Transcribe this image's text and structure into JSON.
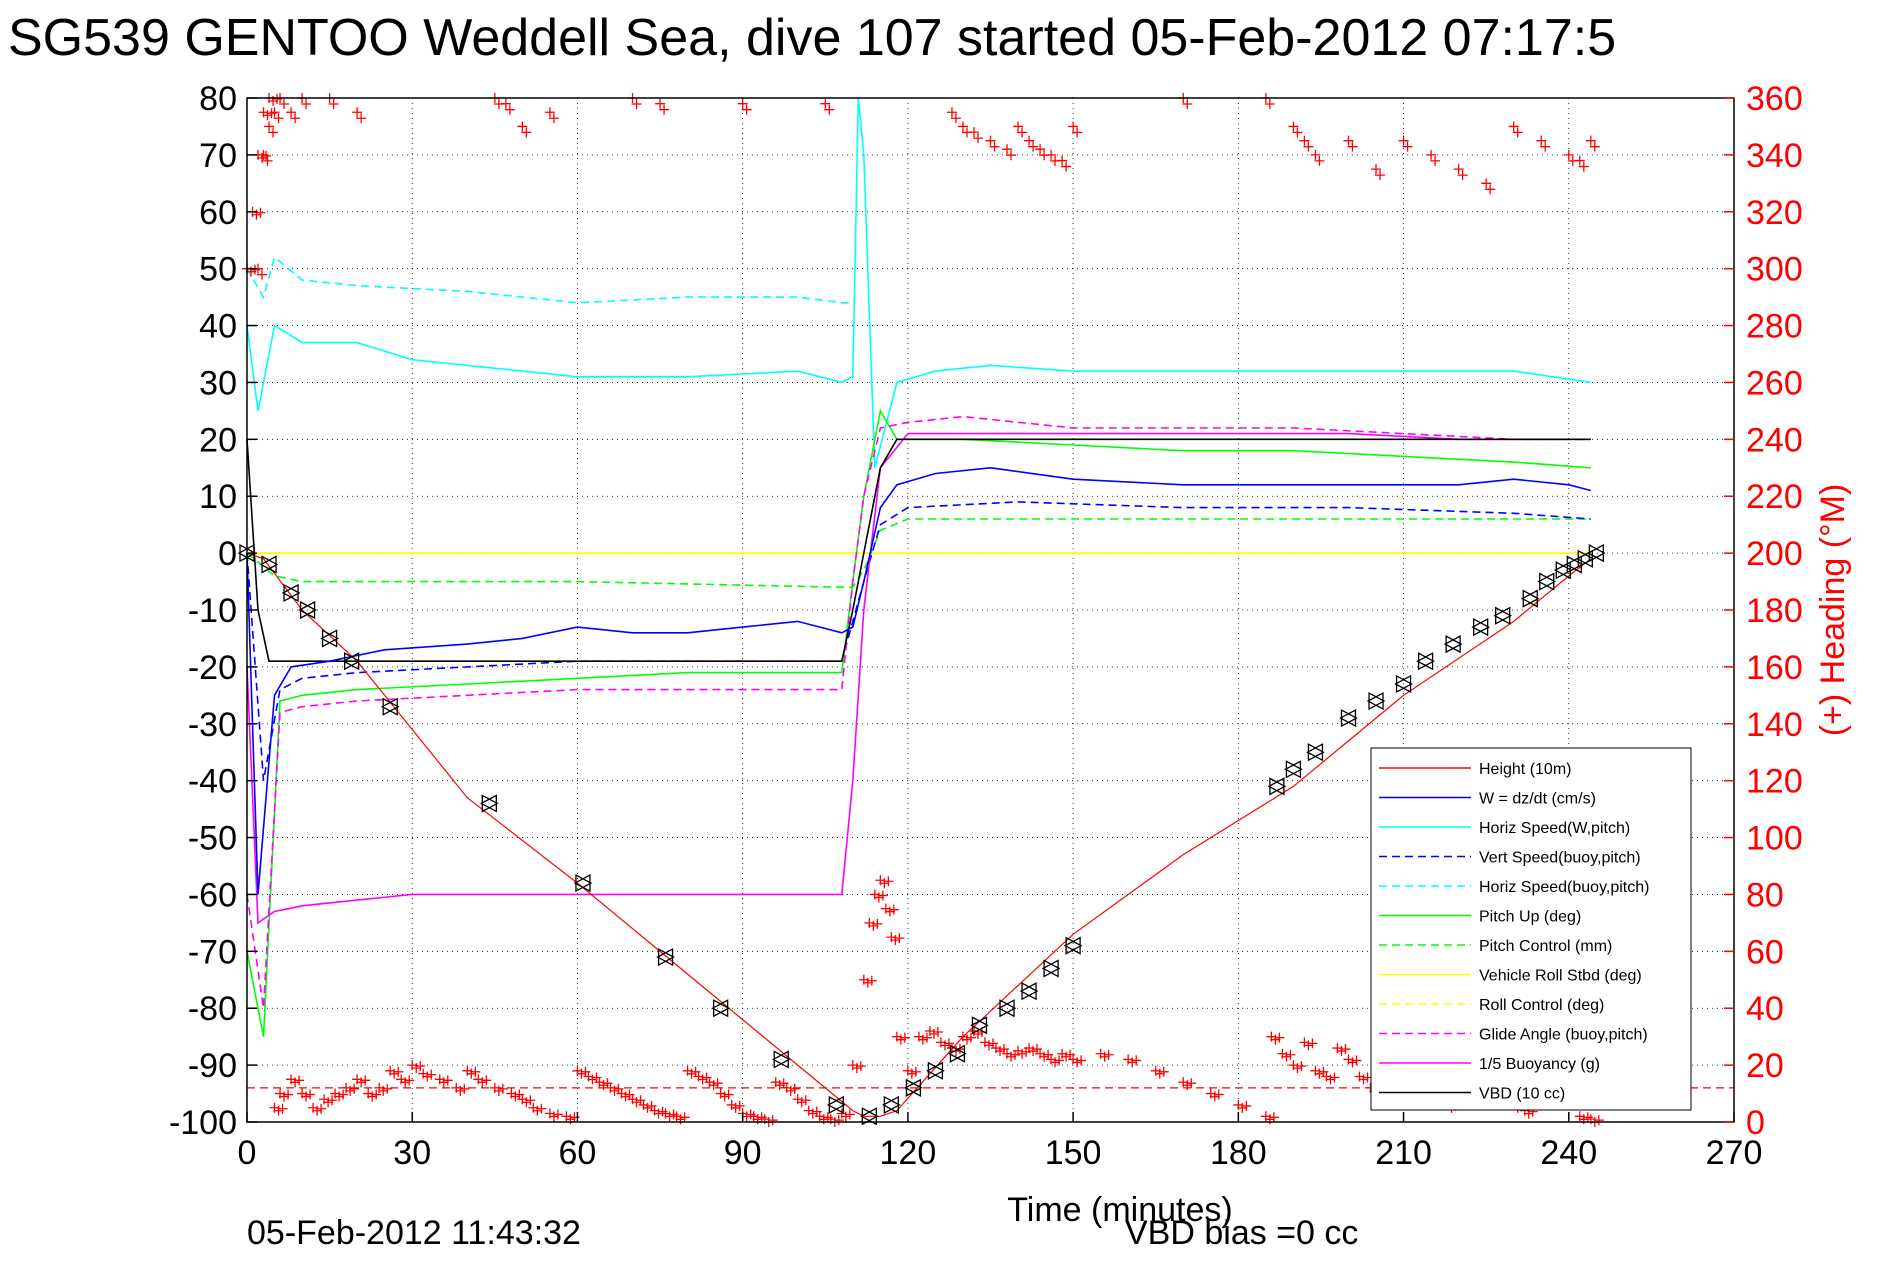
{
  "chart_data": {
    "type": "line",
    "title": "SG539 GENTOO Weddell Sea, dive 107 started 05-Feb-2012 07:17:5",
    "xlabel": "Time (minutes)",
    "ylabel_right": "(+) Heading (°M)",
    "xlim": [
      0,
      270
    ],
    "ylim": [
      -100,
      80
    ],
    "ylim_right": [
      0,
      360
    ],
    "x_ticks": [
      "0",
      "30",
      "60",
      "90",
      "120",
      "150",
      "180",
      "210",
      "240",
      "270"
    ],
    "y_ticks_left": [
      "-100",
      "-90",
      "-80",
      "-70",
      "-60",
      "-50",
      "-40",
      "-30",
      "-20",
      "-10",
      "0",
      "10",
      "20",
      "30",
      "40",
      "50",
      "60",
      "70",
      "80"
    ],
    "y_ticks_right": [
      "0",
      "20",
      "40",
      "60",
      "80",
      "100",
      "120",
      "140",
      "160",
      "180",
      "200",
      "220",
      "240",
      "260",
      "280",
      "300",
      "320",
      "340",
      "360"
    ],
    "grid": true,
    "legend_position": "bottom-right",
    "timestamp": "05-Feb-2012 11:43:32",
    "vbd_bias": "VBD bias =0 cc",
    "colors": {
      "height": "#ff0000",
      "w": "#0000ff",
      "horiz_speed_w": "#00ffff",
      "vert_speed_buoy": "#0000ff",
      "horiz_speed_buoy": "#00ffff",
      "pitch_up": "#00ff00",
      "pitch_control": "#00ff00",
      "vehicle_roll": "#ffff00",
      "roll_control": "#ffff00",
      "glide_angle": "#ff00ff",
      "buoyancy": "#ff00ff",
      "vbd": "#000000",
      "heading": "#ff0000"
    },
    "series": [
      {
        "name": "Height (10m)",
        "key": "height",
        "style": "solid",
        "x": [
          0,
          3,
          10,
          20,
          40,
          60,
          80,
          100,
          110,
          112,
          115,
          118,
          130,
          150,
          170,
          190,
          210,
          230,
          240,
          244
        ],
        "y": [
          0,
          -1,
          -10,
          -19,
          -43,
          -58,
          -74,
          -90,
          -98,
          -99,
          -99,
          -98,
          -85,
          -67,
          -53,
          -41,
          -25,
          -12,
          -4,
          -1
        ]
      },
      {
        "name": "W = dz/dt (cm/s)",
        "key": "w",
        "style": "solid",
        "x": [
          0,
          2,
          5,
          8,
          15,
          25,
          40,
          50,
          60,
          70,
          80,
          90,
          100,
          108,
          110,
          112,
          115,
          118,
          125,
          135,
          150,
          170,
          190,
          200,
          210,
          220,
          230,
          240,
          244
        ],
        "y": [
          0,
          -60,
          -25,
          -20,
          -19,
          -17,
          -16,
          -15,
          -13,
          -14,
          -14,
          -13,
          -12,
          -14,
          -13,
          -5,
          8,
          12,
          14,
          15,
          13,
          12,
          12,
          12,
          12,
          12,
          13,
          12,
          11
        ]
      },
      {
        "name": "Horiz Speed(W,pitch)",
        "key": "horiz_speed_w",
        "style": "solid",
        "x": [
          0,
          2,
          5,
          10,
          20,
          30,
          40,
          50,
          60,
          80,
          100,
          108,
          110,
          111,
          112,
          114,
          118,
          125,
          135,
          150,
          170,
          190,
          210,
          230,
          244
        ],
        "y": [
          40,
          25,
          40,
          37,
          37,
          34,
          33,
          32,
          31,
          31,
          32,
          30,
          31,
          80,
          70,
          15,
          30,
          32,
          33,
          32,
          32,
          32,
          32,
          32,
          30
        ]
      },
      {
        "name": "Vert Speed(buoy,pitch)",
        "key": "vert_speed_buoy",
        "style": "dashed",
        "x": [
          0,
          3,
          6,
          10,
          20,
          40,
          60,
          80,
          100,
          108,
          112,
          115,
          120,
          140,
          170,
          200,
          230,
          244
        ],
        "y": [
          0,
          -40,
          -24,
          -22,
          -21,
          -20,
          -19,
          -19,
          -19,
          -19,
          -5,
          5,
          8,
          9,
          8,
          8,
          7,
          6
        ]
      },
      {
        "name": "Horiz Speed(buoy,pitch)",
        "key": "horiz_speed_buoy",
        "style": "dashed",
        "x": [
          0,
          3,
          5,
          10,
          20,
          40,
          50,
          60,
          80,
          100,
          108,
          110
        ],
        "y": [
          50,
          45,
          52,
          48,
          47,
          46,
          45,
          44,
          45,
          45,
          44,
          44
        ]
      },
      {
        "name": "Pitch Up (deg)",
        "key": "pitch_up",
        "style": "solid",
        "x": [
          0,
          3,
          6,
          10,
          20,
          40,
          60,
          80,
          100,
          108,
          110,
          112,
          115,
          118,
          130,
          150,
          170,
          190,
          210,
          230,
          244
        ],
        "y": [
          -70,
          -85,
          -26,
          -25,
          -24,
          -23,
          -22,
          -21,
          -21,
          -21,
          -5,
          10,
          25,
          20,
          20,
          19,
          18,
          18,
          17,
          16,
          15
        ]
      },
      {
        "name": "Pitch Control (mm)",
        "key": "pitch_control",
        "style": "dashed",
        "x": [
          0,
          5,
          10,
          20,
          60,
          108,
          110,
          112,
          115,
          120,
          140,
          200,
          244
        ],
        "y": [
          0,
          -4,
          -5,
          -5,
          -5,
          -6,
          -6,
          -3,
          4,
          6,
          6,
          6,
          6
        ]
      },
      {
        "name": "Vehicle Roll Stbd (deg)",
        "key": "vehicle_roll",
        "style": "solid",
        "x": [
          0,
          10,
          20,
          40,
          60,
          80,
          100,
          110,
          115,
          120,
          140,
          160,
          180,
          200,
          220,
          240,
          244
        ],
        "y": [
          0,
          0,
          0,
          0,
          0,
          0,
          0,
          0,
          0,
          0,
          0,
          0,
          0,
          0,
          0,
          0,
          0
        ]
      },
      {
        "name": "Roll Control (deg)",
        "key": "roll_control",
        "style": "dashed",
        "x": [
          0,
          10,
          20,
          40,
          60,
          80,
          100,
          110,
          115,
          120,
          140,
          160,
          180,
          200,
          220,
          240,
          244
        ],
        "y": [
          0,
          0,
          0,
          0,
          0,
          0,
          0,
          0,
          0,
          0,
          0,
          0,
          0,
          0,
          0,
          0,
          0
        ]
      },
      {
        "name": "Glide Angle (buoy,pitch)",
        "key": "glide_angle",
        "style": "dashed",
        "x": [
          0,
          3,
          6,
          10,
          20,
          40,
          60,
          80,
          100,
          108,
          110,
          112,
          115,
          120,
          130,
          150,
          170,
          190,
          210,
          230,
          244
        ],
        "y": [
          -60,
          -80,
          -28,
          -27,
          -26,
          -25,
          -24,
          -24,
          -24,
          -24,
          -5,
          10,
          22,
          23,
          24,
          22,
          22,
          22,
          21,
          20,
          20
        ]
      },
      {
        "name": "1/5 Buoyancy (g)",
        "key": "buoyancy",
        "style": "solid",
        "x": [
          0,
          2,
          5,
          10,
          20,
          30,
          40,
          60,
          80,
          100,
          108,
          110,
          112,
          115,
          120,
          140,
          160,
          180,
          200,
          220,
          240,
          244
        ],
        "y": [
          -20,
          -65,
          -63,
          -62,
          -61,
          -60,
          -60,
          -60,
          -60,
          -60,
          -60,
          -40,
          -10,
          15,
          21,
          21,
          21,
          21,
          21,
          20,
          20,
          20
        ]
      },
      {
        "name": "VBD (10 cc)",
        "key": "vbd",
        "style": "solid",
        "x": [
          0,
          2,
          4,
          10,
          20,
          40,
          60,
          80,
          100,
          108,
          110,
          112,
          115,
          118,
          130,
          150,
          170,
          190,
          210,
          230,
          244
        ],
        "y": [
          20,
          -10,
          -19,
          -19,
          -19,
          -19,
          -19,
          -19,
          -19,
          -19,
          -10,
          0,
          15,
          20,
          20,
          20,
          20,
          20,
          20,
          20,
          20
        ]
      }
    ],
    "heading_points": {
      "name": "(+) Heading (°M)",
      "x": [
        0,
        1,
        2,
        3,
        4,
        5,
        6,
        8,
        10,
        12,
        14,
        16,
        18,
        20,
        22,
        24,
        26,
        28,
        30,
        32,
        35,
        38,
        40,
        42,
        45,
        48,
        50,
        52,
        55,
        58,
        60,
        62,
        64,
        66,
        68,
        70,
        72,
        74,
        76,
        78,
        80,
        82,
        84,
        86,
        88,
        90,
        92,
        94,
        96,
        98,
        100,
        102,
        104,
        106,
        108,
        110,
        112,
        113,
        114,
        115,
        116,
        117,
        118,
        120,
        122,
        124,
        126,
        128,
        130,
        132,
        134,
        136,
        138,
        140,
        142,
        144,
        146,
        148,
        150,
        155,
        160,
        165,
        170,
        175,
        180,
        185,
        186,
        188,
        190,
        192,
        194,
        196,
        198,
        200,
        202,
        204,
        206,
        208,
        210,
        212,
        214,
        216,
        218,
        220,
        222,
        224,
        226,
        228,
        230,
        232,
        234,
        236,
        238,
        240,
        242,
        244
      ],
      "y": [
        300,
        320,
        340,
        355,
        360,
        5,
        10,
        15,
        10,
        5,
        8,
        10,
        12,
        15,
        10,
        12,
        18,
        15,
        20,
        17,
        15,
        12,
        18,
        15,
        12,
        10,
        8,
        5,
        3,
        2,
        18,
        16,
        14,
        12,
        10,
        8,
        6,
        4,
        3,
        2,
        18,
        16,
        14,
        10,
        6,
        3,
        2,
        1,
        14,
        12,
        8,
        4,
        2,
        1,
        3,
        20,
        50,
        70,
        80,
        85,
        75,
        65,
        30,
        18,
        30,
        32,
        28,
        26,
        30,
        32,
        28,
        26,
        24,
        25,
        26,
        24,
        22,
        24,
        22,
        24,
        22,
        18,
        14,
        10,
        6,
        2,
        30,
        24,
        20,
        28,
        18,
        16,
        26,
        22,
        16,
        12,
        8,
        24,
        20,
        16,
        12,
        8,
        6,
        24,
        20,
        16,
        12,
        8,
        6,
        4,
        20,
        16,
        12,
        8,
        2,
        1
      ]
    },
    "heading_top_points": {
      "x": [
        2,
        3,
        4,
        5,
        6,
        8,
        10,
        15,
        20,
        45,
        47,
        50,
        55,
        70,
        75,
        90,
        105,
        128,
        130,
        132,
        135,
        138,
        140,
        142,
        144,
        146,
        148,
        150,
        170,
        185,
        190,
        192,
        194,
        200,
        205,
        210,
        215,
        220,
        225,
        230,
        235,
        240,
        242,
        244
      ],
      "y": [
        300,
        340,
        350,
        355,
        360,
        355,
        360,
        360,
        355,
        360,
        358,
        350,
        355,
        360,
        358,
        358,
        358,
        355,
        350,
        348,
        345,
        342,
        350,
        345,
        342,
        340,
        338,
        350,
        360,
        360,
        350,
        345,
        340,
        345,
        335,
        345,
        340,
        335,
        330,
        350,
        345,
        340,
        338,
        345
      ]
    },
    "heading_mean": 12,
    "dive_markers": {
      "x": [
        0,
        4,
        8,
        11,
        15,
        19,
        26,
        44,
        61,
        76,
        86,
        97,
        107,
        113,
        117,
        121,
        125,
        129,
        133,
        138,
        142,
        146,
        150,
        187,
        190,
        194,
        200,
        205,
        210,
        214,
        219,
        224,
        228,
        233,
        236,
        239,
        241,
        243,
        245
      ],
      "y": [
        0,
        -2,
        -7,
        -10,
        -15,
        -19,
        -27,
        -44,
        -58,
        -71,
        -80,
        -89,
        -97,
        -99,
        -97,
        -94,
        -91,
        -88,
        -83,
        -80,
        -77,
        -73,
        -69,
        -41,
        -38,
        -35,
        -29,
        -26,
        -23,
        -19,
        -16,
        -13,
        -11,
        -8,
        -5,
        -3,
        -2,
        -1,
        0
      ]
    },
    "legend": [
      {
        "label": "Height (10m)",
        "key": "height",
        "style": "solid"
      },
      {
        "label": "W = dz/dt (cm/s)",
        "key": "w",
        "style": "solid"
      },
      {
        "label": "Horiz Speed(W,pitch)",
        "key": "horiz_speed_w",
        "style": "solid"
      },
      {
        "label": "Vert Speed(buoy,pitch)",
        "key": "vert_speed_buoy",
        "style": "dashed"
      },
      {
        "label": "Horiz Speed(buoy,pitch)",
        "key": "horiz_speed_buoy",
        "style": "dashed"
      },
      {
        "label": "Pitch Up (deg)",
        "key": "pitch_up",
        "style": "solid"
      },
      {
        "label": "Pitch Control (mm)",
        "key": "pitch_control",
        "style": "dashed"
      },
      {
        "label": "Vehicle Roll Stbd (deg)",
        "key": "vehicle_roll",
        "style": "solid"
      },
      {
        "label": "Roll Control (deg)",
        "key": "roll_control",
        "style": "dashed"
      },
      {
        "label": "Glide Angle (buoy,pitch)",
        "key": "glide_angle",
        "style": "dashed"
      },
      {
        "label": "1/5 Buoyancy (g)",
        "key": "buoyancy",
        "style": "solid"
      },
      {
        "label": "VBD (10 cc)",
        "key": "vbd",
        "style": "solid"
      }
    ]
  }
}
